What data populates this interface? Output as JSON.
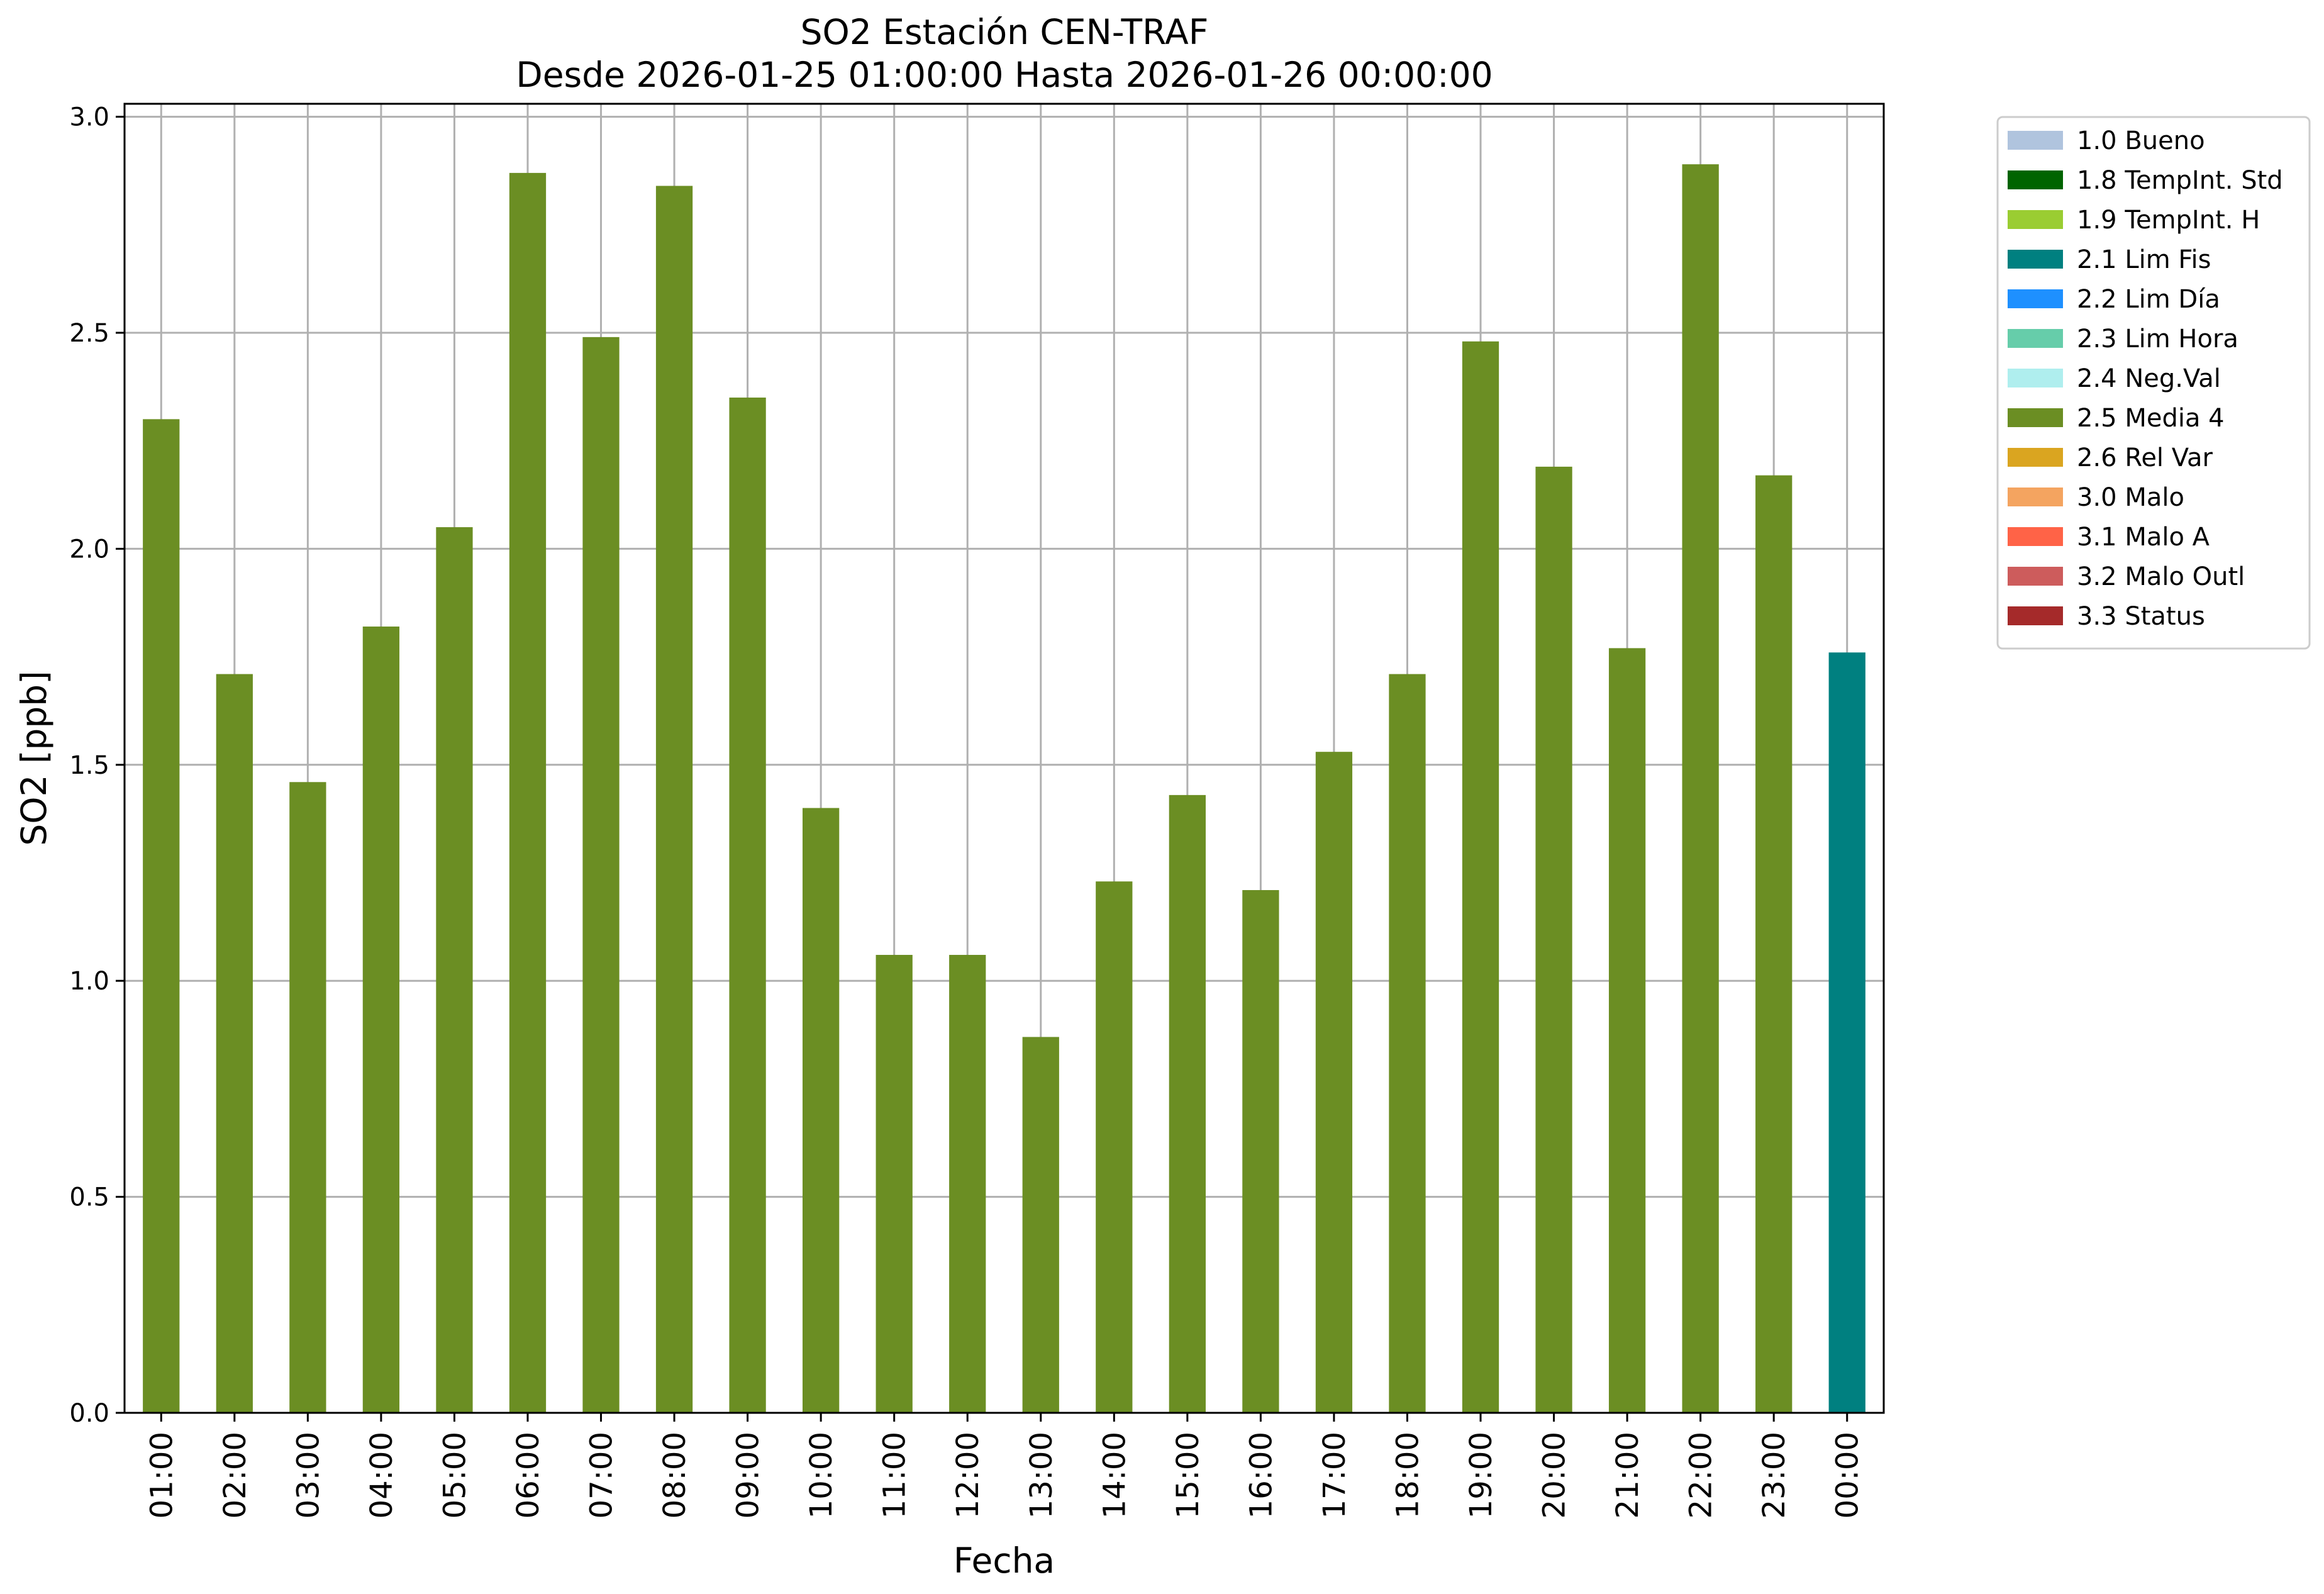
{
  "chart_data": {
    "type": "bar",
    "title": "SO2 Estación CEN-TRAF",
    "subtitle": "Desde 2026-01-25 01:00:00 Hasta 2026-01-26 00:00:00",
    "xlabel": "Fecha",
    "ylabel": "SO2 [ppb]",
    "ylim": [
      0,
      3.03
    ],
    "yticks": [
      "0.0",
      "0.5",
      "1.0",
      "1.5",
      "2.0",
      "2.5",
      "3.0"
    ],
    "grid": true,
    "legend_position": "outside-top-right",
    "categories": [
      "01:00",
      "02:00",
      "03:00",
      "04:00",
      "05:00",
      "06:00",
      "07:00",
      "08:00",
      "09:00",
      "10:00",
      "11:00",
      "12:00",
      "13:00",
      "14:00",
      "15:00",
      "16:00",
      "17:00",
      "18:00",
      "19:00",
      "20:00",
      "21:00",
      "22:00",
      "23:00",
      "00:00"
    ],
    "values": [
      2.3,
      1.71,
      1.46,
      1.82,
      2.05,
      2.87,
      2.49,
      2.84,
      2.35,
      1.4,
      1.06,
      1.06,
      0.87,
      1.23,
      1.43,
      1.21,
      1.53,
      1.71,
      2.48,
      2.19,
      1.77,
      2.89,
      2.17,
      1.76
    ],
    "flags": [
      "2.5 Media 4",
      "2.5 Media 4",
      "2.5 Media 4",
      "2.5 Media 4",
      "2.5 Media 4",
      "2.5 Media 4",
      "2.5 Media 4",
      "2.5 Media 4",
      "2.5 Media 4",
      "2.5 Media 4",
      "2.5 Media 4",
      "2.5 Media 4",
      "2.5 Media 4",
      "2.5 Media 4",
      "2.5 Media 4",
      "2.5 Media 4",
      "2.5 Media 4",
      "2.5 Media 4",
      "2.5 Media 4",
      "2.5 Media 4",
      "2.5 Media 4",
      "2.5 Media 4",
      "2.5 Media 4",
      "2.1 Lim Fis"
    ],
    "legend": [
      {
        "label": "1.0 Bueno",
        "color": "#b0c4de"
      },
      {
        "label": "1.8 TempInt. Std",
        "color": "#006400"
      },
      {
        "label": "1.9 TempInt. H",
        "color": "#9acd32"
      },
      {
        "label": "2.1 Lim Fis",
        "color": "#008080"
      },
      {
        "label": "2.2 Lim Día",
        "color": "#1e90ff"
      },
      {
        "label": "2.3 Lim Hora",
        "color": "#66cdaa"
      },
      {
        "label": "2.4 Neg.Val",
        "color": "#afeeee"
      },
      {
        "label": "2.5 Media 4",
        "color": "#6b8e23"
      },
      {
        "label": "2.6 Rel Var",
        "color": "#daa520"
      },
      {
        "label": "3.0 Malo",
        "color": "#f4a460"
      },
      {
        "label": "3.1 Malo A",
        "color": "#ff6347"
      },
      {
        "label": "3.2 Malo Outl",
        "color": "#cd5c5c"
      },
      {
        "label": "3.3 Status",
        "color": "#a52a2a"
      }
    ]
  }
}
